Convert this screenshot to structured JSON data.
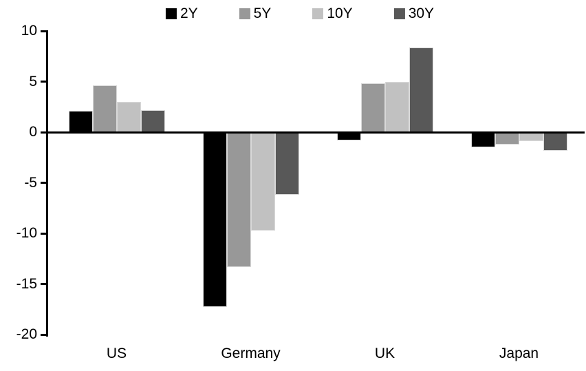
{
  "chart_data": {
    "type": "bar",
    "title": "",
    "categories": [
      "US",
      "Germany",
      "UK",
      "Japan"
    ],
    "series": [
      {
        "name": "2Y",
        "color": "#000000",
        "values": [
          2.1,
          -17.3,
          -0.8,
          -1.5
        ]
      },
      {
        "name": "5Y",
        "color": "#989898",
        "values": [
          4.6,
          -13.3,
          4.8,
          -1.2
        ]
      },
      {
        "name": "10Y",
        "color": "#c1c1c1",
        "values": [
          3.0,
          -9.7,
          5.0,
          -0.9
        ]
      },
      {
        "name": "30Y",
        "color": "#585858",
        "values": [
          2.2,
          -6.2,
          8.4,
          -1.8
        ]
      }
    ],
    "y_ticks": [
      10,
      5,
      0,
      -5,
      -10,
      -15,
      -20
    ],
    "ylim": [
      -20,
      10
    ],
    "xlabel": "",
    "ylabel": "",
    "legend_position": "top",
    "grid": false,
    "axis_color": "#000000",
    "background_color": "#ffffff",
    "bar_outline_color": "#d9d9d9"
  }
}
